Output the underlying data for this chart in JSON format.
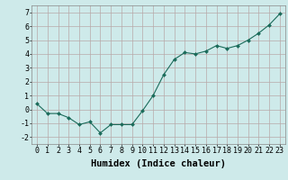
{
  "x": [
    0,
    1,
    2,
    3,
    4,
    5,
    6,
    7,
    8,
    9,
    10,
    11,
    12,
    13,
    14,
    15,
    16,
    17,
    18,
    19,
    20,
    21,
    22,
    23
  ],
  "y": [
    0.4,
    -0.3,
    -0.3,
    -0.6,
    -1.1,
    -0.9,
    -1.7,
    -1.1,
    -1.1,
    -1.1,
    -0.1,
    1.0,
    2.5,
    3.6,
    4.1,
    4.0,
    4.2,
    4.6,
    4.4,
    4.6,
    5.0,
    5.5,
    6.1,
    6.9
  ],
  "xlim": [
    -0.5,
    23.5
  ],
  "ylim": [
    -2.5,
    7.5
  ],
  "yticks": [
    -2,
    -1,
    0,
    1,
    2,
    3,
    4,
    5,
    6,
    7
  ],
  "xticks": [
    0,
    1,
    2,
    3,
    4,
    5,
    6,
    7,
    8,
    9,
    10,
    11,
    12,
    13,
    14,
    15,
    16,
    17,
    18,
    19,
    20,
    21,
    22,
    23
  ],
  "xlabel": "Humidex (Indice chaleur)",
  "line_color": "#1a6b5a",
  "marker": "D",
  "marker_size": 2.0,
  "bg_color": "#ceeaea",
  "grid_color": "#b8a8a8",
  "xlabel_fontsize": 7.5,
  "tick_fontsize": 6.0
}
